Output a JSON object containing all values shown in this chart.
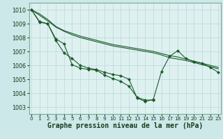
{
  "background_color": "#cce8e8",
  "plot_bg_color": "#dff0f0",
  "grid_color": "#b8d8d8",
  "line_color": "#1a5c2a",
  "xlabel": "Graphe pression niveau de la mer (hPa)",
  "xlabel_fontsize": 7,
  "ytick_labels": [
    "1003",
    "1004",
    "1005",
    "1006",
    "1007",
    "1008",
    "1009",
    "1010"
  ],
  "yticks": [
    1003,
    1004,
    1005,
    1006,
    1007,
    1008,
    1009,
    1010
  ],
  "xticks": [
    0,
    1,
    2,
    3,
    4,
    5,
    6,
    7,
    8,
    9,
    10,
    11,
    12,
    13,
    14,
    15,
    16,
    17,
    18,
    19,
    20,
    21,
    22,
    23
  ],
  "ylim": [
    1002.5,
    1010.5
  ],
  "xlim": [
    -0.3,
    23.3
  ],
  "series1_x": [
    0,
    1,
    2,
    3,
    4,
    5,
    6,
    7,
    8,
    9,
    10,
    11,
    12,
    13,
    14,
    15
  ],
  "series1_y": [
    1010.0,
    1009.15,
    1009.0,
    1007.9,
    1007.55,
    1006.05,
    1005.8,
    1005.7,
    1005.65,
    1005.3,
    1005.05,
    1004.85,
    1004.5,
    1003.7,
    1003.5,
    1003.5
  ],
  "series2_x": [
    0,
    1,
    2,
    3,
    4,
    5,
    6,
    7,
    8,
    9,
    10,
    11,
    12,
    13,
    14,
    15,
    16,
    17,
    18,
    19,
    20,
    21,
    22,
    23
  ],
  "series2_y": [
    1010.0,
    1009.1,
    1009.0,
    1007.8,
    1006.9,
    1006.5,
    1006.0,
    1005.8,
    1005.7,
    1005.5,
    1005.35,
    1005.25,
    1005.0,
    1003.65,
    1003.4,
    1003.55,
    1005.55,
    1006.65,
    1007.05,
    1006.5,
    1006.25,
    1006.15,
    1005.85,
    1005.5
  ],
  "series3_x": [
    0,
    1,
    2,
    3,
    4,
    5,
    6,
    7,
    8,
    9,
    10,
    11,
    12,
    13,
    14,
    15,
    16,
    17,
    18,
    19,
    20,
    21,
    22,
    23
  ],
  "series3_y": [
    1010.0,
    1009.7,
    1009.3,
    1008.8,
    1008.5,
    1008.3,
    1008.1,
    1007.95,
    1007.8,
    1007.65,
    1007.5,
    1007.4,
    1007.3,
    1007.2,
    1007.1,
    1007.0,
    1006.85,
    1006.7,
    1006.6,
    1006.45,
    1006.3,
    1006.15,
    1006.0,
    1005.85
  ],
  "series4_x": [
    0,
    1,
    2,
    3,
    4,
    5,
    6,
    7,
    8,
    9,
    10,
    11,
    12,
    13,
    14,
    15,
    16,
    17,
    18,
    19,
    20,
    21,
    22,
    23
  ],
  "series4_y": [
    1010.0,
    1009.6,
    1009.2,
    1008.75,
    1008.45,
    1008.2,
    1008.0,
    1007.85,
    1007.7,
    1007.55,
    1007.4,
    1007.3,
    1007.2,
    1007.1,
    1007.0,
    1006.9,
    1006.75,
    1006.55,
    1006.45,
    1006.35,
    1006.2,
    1006.05,
    1005.9,
    1005.75
  ]
}
